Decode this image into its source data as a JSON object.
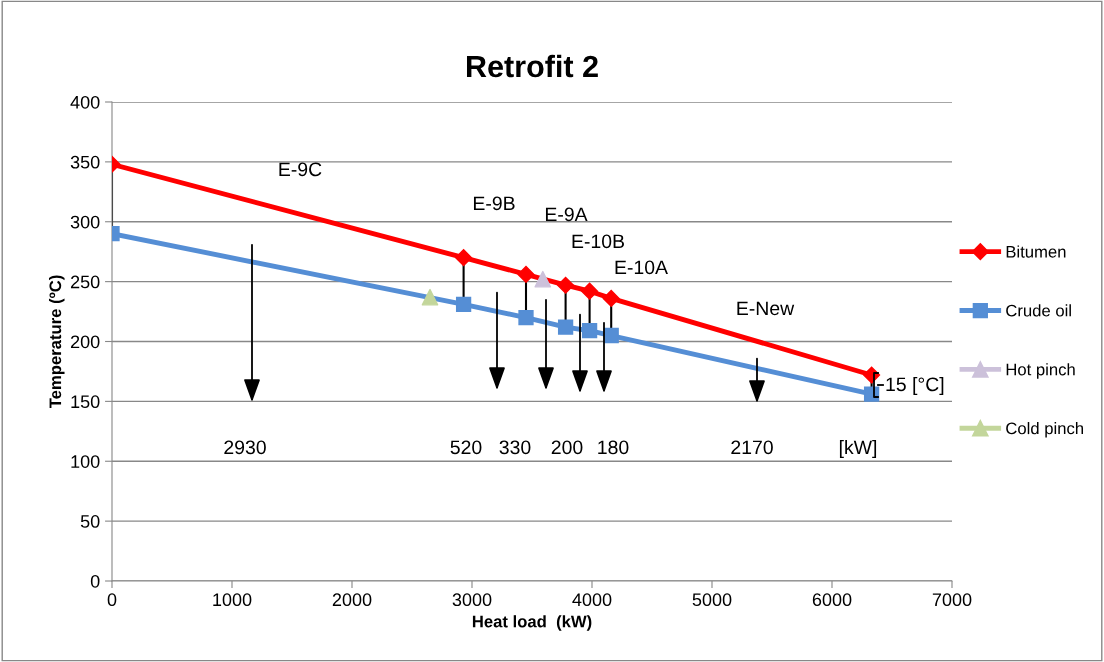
{
  "chart_data": {
    "type": "line",
    "title": "Retrofit 2",
    "xlabel": "Heat load  (kW)",
    "ylabel": "Temperature (ºC)",
    "xlim": [
      0,
      7000
    ],
    "xticks": [
      0,
      1000,
      2000,
      3000,
      4000,
      5000,
      6000,
      7000
    ],
    "ylim": [
      0,
      400
    ],
    "yticks": [
      0,
      50,
      100,
      150,
      200,
      250,
      300,
      350,
      400
    ],
    "grid": "y",
    "legend": "right",
    "series": [
      {
        "name": "Bitumen",
        "color": "#ff0000",
        "marker": "diamond",
        "x": [
          0,
          2930,
          3450,
          3780,
          3980,
          4160,
          6330
        ],
        "values": [
          348,
          270,
          256,
          247,
          242,
          236,
          172
        ]
      },
      {
        "name": "Crude oil",
        "color": "#558ed5",
        "marker": "square",
        "x": [
          0,
          2930,
          3450,
          3780,
          3980,
          4160,
          6330
        ],
        "values": [
          290,
          231,
          220,
          212,
          209,
          205,
          156
        ]
      },
      {
        "name": "Hot pinch",
        "type": "scatter",
        "color": "#ccc1da",
        "marker": "triangle",
        "x": [
          3590
        ],
        "values": [
          252
        ]
      },
      {
        "name": "Cold pinch",
        "type": "scatter",
        "color": "#c3d69b",
        "marker": "triangle",
        "x": [
          2650
        ],
        "values": [
          237
        ]
      }
    ],
    "annotations": [
      "E-9C",
      "E-9B",
      "E-9A",
      "E-10B",
      "E-10A",
      "E-New",
      "2930",
      "520",
      "330",
      "200",
      "180",
      "2170",
      "[kW]",
      "15 [°C]"
    ]
  }
}
